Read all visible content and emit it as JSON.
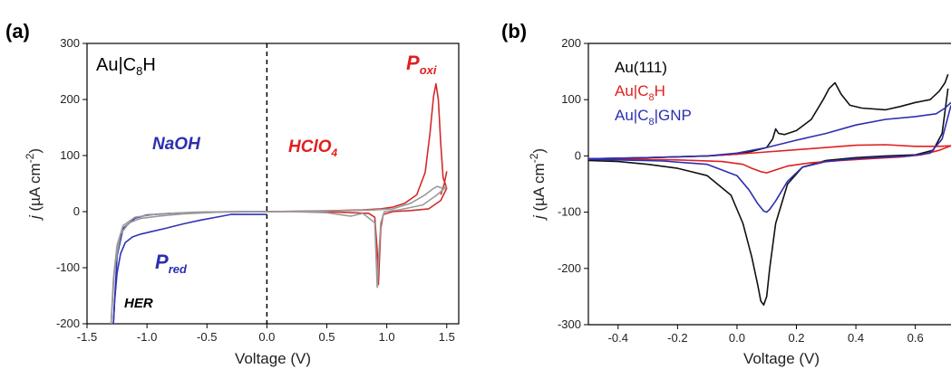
{
  "chart_data": [
    {
      "panel_label": "(a)",
      "type": "line",
      "xlabel": "Voltage (V)",
      "ylabel_pre": "j",
      "ylabel_unit": " (µA cm",
      "ylabel_exp": "-2",
      "ylabel_post": ")",
      "xlim": [
        -1.5,
        1.6
      ],
      "ylim": [
        -200,
        300
      ],
      "xticks": [
        -1.5,
        -1.0,
        -0.5,
        0.0,
        0.5,
        1.0,
        1.5
      ],
      "xtick_labels": [
        "-1.5",
        "-1.0",
        "-0.5",
        "0.0",
        "0.5",
        "1.0",
        "1.5"
      ],
      "yticks": [
        -200,
        -100,
        0,
        100,
        200,
        300
      ],
      "ytick_labels": [
        "-200",
        "-100",
        "0",
        "100",
        "200",
        "300"
      ],
      "vline_x": 0,
      "annotations": {
        "sample": {
          "main": "Au|C",
          "sub": "8",
          "tail": "H",
          "color": "#000000"
        },
        "naoh": {
          "text": "NaOH",
          "color": "#2b2fb0"
        },
        "hclo4": {
          "main": "HClO",
          "sub": "4",
          "color": "#e02020"
        },
        "poxi": {
          "main": "P",
          "sub": "oxi",
          "color": "#e02020"
        },
        "pred": {
          "main": "P",
          "sub": "red",
          "color": "#2b2fb0"
        },
        "her": {
          "text": "HER",
          "color": "#000000"
        }
      },
      "series": [
        {
          "color": "#2f33b5",
          "x": [
            -1.28,
            -1.27,
            -1.25,
            -1.22,
            -1.18,
            -1.12,
            -1.05,
            -0.95,
            -0.85,
            -0.7,
            -0.55,
            -0.4,
            -0.3,
            -0.2,
            0.0
          ],
          "y": [
            -200,
            -160,
            -110,
            -75,
            -55,
            -45,
            -40,
            -35,
            -30,
            -22,
            -15,
            -9,
            -5,
            -5,
            -5
          ]
        },
        {
          "color": "#2f33b5",
          "x": [
            -1.28,
            -1.25,
            -1.2,
            -1.1,
            -1.0,
            -0.8,
            -0.5,
            -0.2,
            0.0
          ],
          "y": [
            -200,
            -80,
            -30,
            -12,
            -6,
            -3,
            -1,
            0,
            0
          ]
        },
        {
          "color": "#999999",
          "x": [
            -1.3,
            -1.28,
            -1.25,
            -1.2,
            -1.1,
            -0.9,
            -0.6,
            -0.3,
            0.0
          ],
          "y": [
            -200,
            -120,
            -60,
            -25,
            -10,
            -4,
            -1,
            0,
            0
          ]
        },
        {
          "color": "#999999",
          "x": [
            -1.3,
            -1.27,
            -1.22,
            -1.15,
            -1.05,
            -0.9,
            -0.7,
            -0.4,
            0.0
          ],
          "y": [
            -200,
            -100,
            -40,
            -20,
            -12,
            -8,
            -4,
            -1,
            0
          ]
        },
        {
          "color": "#d42a2a",
          "x": [
            0.0,
            0.3,
            0.6,
            0.8,
            0.95,
            1.05,
            1.15,
            1.25,
            1.32,
            1.36,
            1.39,
            1.41,
            1.43,
            1.45,
            1.47,
            1.5
          ],
          "y": [
            0,
            1,
            2,
            3,
            5,
            8,
            15,
            30,
            70,
            140,
            205,
            228,
            200,
            120,
            60,
            42
          ]
        },
        {
          "color": "#d42a2a",
          "x": [
            1.5,
            1.45,
            1.35,
            1.2,
            1.05,
            0.97,
            0.95,
            0.94,
            0.93,
            0.92,
            0.9,
            0.85,
            0.6,
            0.3,
            0.0
          ],
          "y": [
            42,
            20,
            5,
            2,
            0,
            -5,
            -30,
            -80,
            -130,
            -70,
            -10,
            -3,
            -1,
            0,
            0
          ]
        },
        {
          "color": "#d42a2a",
          "x": [
            1.45,
            1.48,
            1.5
          ],
          "y": [
            30,
            50,
            72
          ]
        },
        {
          "color": "#999999",
          "x": [
            0.0,
            0.4,
            0.7,
            0.9,
            1.05,
            1.2,
            1.32,
            1.38,
            1.42,
            1.46,
            1.5
          ],
          "y": [
            0,
            1,
            2,
            3,
            5,
            15,
            30,
            40,
            45,
            42,
            45
          ]
        },
        {
          "color": "#999999",
          "x": [
            1.5,
            1.42,
            1.3,
            1.1,
            0.98,
            0.95,
            0.93,
            0.92,
            0.9,
            0.8,
            0.7,
            0.5,
            0.2,
            0.0
          ],
          "y": [
            45,
            30,
            12,
            3,
            0,
            -20,
            -90,
            -135,
            -20,
            -3,
            -8,
            -2,
            0,
            0
          ]
        }
      ]
    },
    {
      "panel_label": "(b)",
      "type": "line",
      "xlabel": "Voltage (V)",
      "ylabel_pre": "j",
      "ylabel_unit": " (µA cm",
      "ylabel_exp": "-2",
      "ylabel_post": ")",
      "xlim": [
        -0.5,
        0.72
      ],
      "ylim": [
        -300,
        200
      ],
      "xticks": [
        -0.4,
        -0.2,
        0.0,
        0.2,
        0.4,
        0.6
      ],
      "xtick_labels": [
        "-0.4",
        "-0.2",
        "0.0",
        "0.2",
        "0.4",
        "0.6"
      ],
      "yticks": [
        -300,
        -200,
        -100,
        0,
        100,
        200
      ],
      "ytick_labels": [
        "-300",
        "-200",
        "-100",
        "0",
        "100",
        "200"
      ],
      "legend_position": "top-left",
      "legend": [
        {
          "main": "Au(111)",
          "sub": "",
          "tail": "",
          "color": "#000000"
        },
        {
          "main": "Au|C",
          "sub": "8",
          "tail": "H",
          "color": "#e02020"
        },
        {
          "main": "Au|C",
          "sub": "8",
          "tail": "|GNP",
          "color": "#2b2fb0"
        }
      ],
      "series": [
        {
          "color": "#111111",
          "x": [
            -0.5,
            -0.3,
            -0.1,
            0.0,
            0.05,
            0.1,
            0.12,
            0.13,
            0.14,
            0.16,
            0.2,
            0.25,
            0.29,
            0.31,
            0.33,
            0.35,
            0.38,
            0.42,
            0.5,
            0.55,
            0.6,
            0.65,
            0.68,
            0.7,
            0.71
          ],
          "y": [
            -5,
            -3,
            0,
            3,
            8,
            15,
            30,
            48,
            40,
            38,
            45,
            65,
            100,
            120,
            130,
            110,
            90,
            85,
            82,
            88,
            95,
            100,
            115,
            130,
            145
          ]
        },
        {
          "color": "#111111",
          "x": [
            0.71,
            0.69,
            0.66,
            0.6,
            0.5,
            0.4,
            0.3,
            0.22,
            0.17,
            0.13,
            0.11,
            0.1,
            0.09,
            0.08,
            0.07,
            0.05,
            0.02,
            -0.02,
            -0.1,
            -0.2,
            -0.3,
            -0.4,
            -0.5
          ],
          "y": [
            120,
            40,
            10,
            2,
            0,
            -3,
            -8,
            -20,
            -50,
            -120,
            -200,
            -250,
            -265,
            -258,
            -230,
            -180,
            -120,
            -70,
            -35,
            -22,
            -15,
            -10,
            -8
          ]
        },
        {
          "color": "#e02020",
          "x": [
            -0.5,
            -0.3,
            -0.1,
            0.0,
            0.1,
            0.2,
            0.3,
            0.4,
            0.5,
            0.6,
            0.68,
            0.72
          ],
          "y": [
            -5,
            -3,
            0,
            3,
            7,
            11,
            15,
            19,
            20,
            17,
            17,
            18
          ]
        },
        {
          "color": "#e02020",
          "x": [
            0.72,
            0.68,
            0.62,
            0.55,
            0.45,
            0.35,
            0.25,
            0.17,
            0.13,
            0.1,
            0.08,
            0.05,
            0.02,
            -0.05,
            -0.2,
            -0.35,
            -0.5
          ],
          "y": [
            18,
            10,
            2,
            -2,
            -5,
            -8,
            -12,
            -18,
            -25,
            -30,
            -28,
            -22,
            -15,
            -10,
            -7,
            -6,
            -5
          ]
        },
        {
          "color": "#2b2fb0",
          "x": [
            -0.5,
            -0.3,
            -0.1,
            0.0,
            0.1,
            0.2,
            0.3,
            0.4,
            0.5,
            0.6,
            0.67,
            0.7,
            0.72
          ],
          "y": [
            -5,
            -3,
            0,
            5,
            15,
            28,
            40,
            55,
            65,
            70,
            75,
            85,
            95
          ]
        },
        {
          "color": "#2b2fb0",
          "x": [
            0.72,
            0.69,
            0.65,
            0.58,
            0.5,
            0.4,
            0.3,
            0.22,
            0.17,
            0.13,
            0.11,
            0.1,
            0.09,
            0.07,
            0.04,
            0.0,
            -0.1,
            -0.25,
            -0.4,
            -0.5
          ],
          "y": [
            90,
            30,
            5,
            0,
            -2,
            -5,
            -10,
            -20,
            -45,
            -80,
            -95,
            -100,
            -98,
            -85,
            -60,
            -35,
            -15,
            -9,
            -7,
            -6
          ]
        }
      ]
    }
  ]
}
